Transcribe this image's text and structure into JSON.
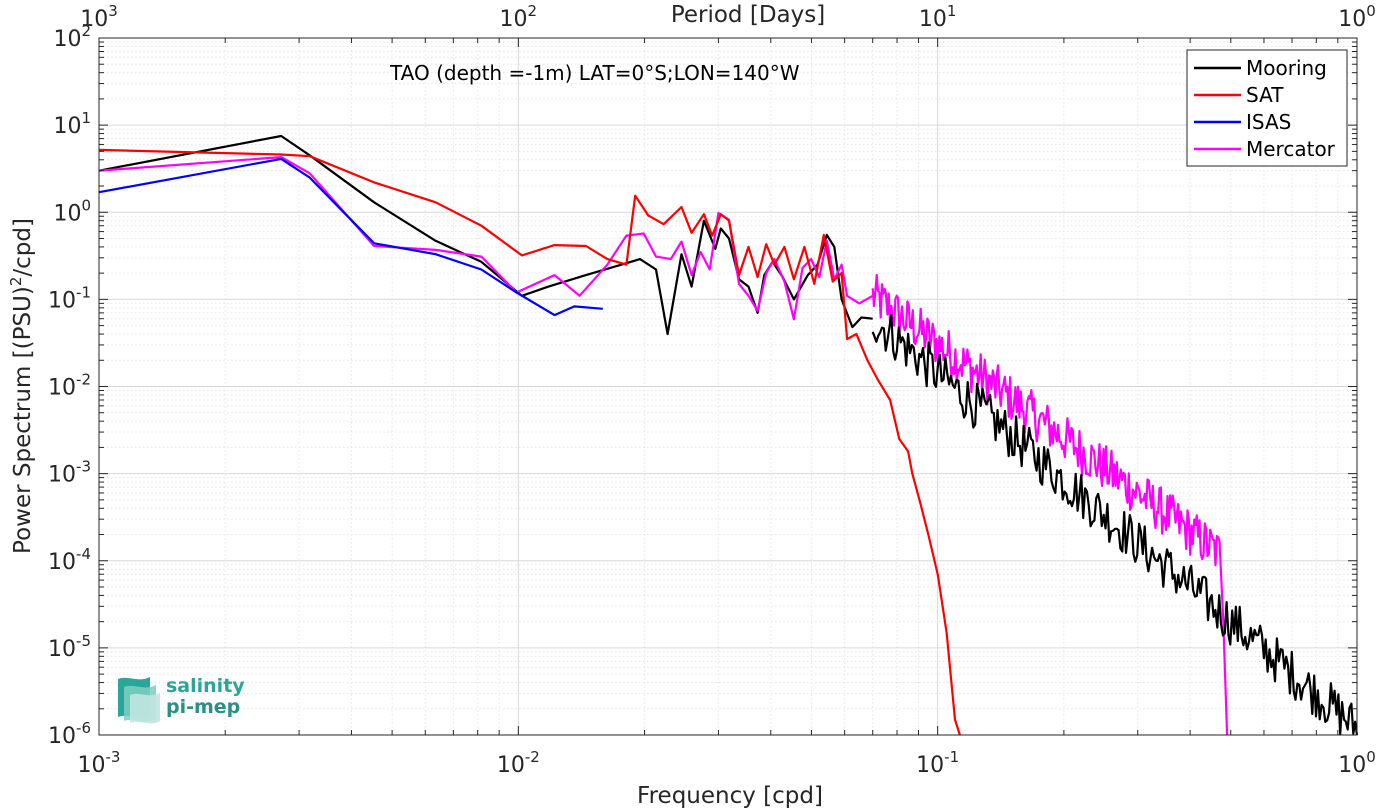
{
  "chart_data": {
    "type": "line",
    "title": "TAO (depth =-1m) LAT=0°S;LON=140°W",
    "xlabel": "Frequency [cpd]",
    "ylabel": "Power Spectrum [(PSU)²/cpd]",
    "ylabel_parts": {
      "before": "Power Spectrum [(PSU)",
      "sup": "2",
      "after": "/cpd]"
    },
    "top_xlabel": "Period [Days]",
    "xscale": "log",
    "yscale": "log",
    "xlim": [
      0.001,
      1
    ],
    "ylim": [
      1e-06,
      100
    ],
    "grid": true,
    "legend_position": "top-right",
    "x_ticks": [
      {
        "base": "10",
        "exp": "-3"
      },
      {
        "base": "10",
        "exp": "-2"
      },
      {
        "base": "10",
        "exp": "-1"
      },
      {
        "base": "10",
        "exp": "0"
      }
    ],
    "top_x_ticks": [
      {
        "base": "10",
        "exp": "3"
      },
      {
        "base": "10",
        "exp": "2"
      },
      {
        "base": "10",
        "exp": "1"
      },
      {
        "base": "10",
        "exp": "0"
      }
    ],
    "y_ticks": [
      {
        "base": "10",
        "exp": "-6"
      },
      {
        "base": "10",
        "exp": "-5"
      },
      {
        "base": "10",
        "exp": "-4"
      },
      {
        "base": "10",
        "exp": "-3"
      },
      {
        "base": "10",
        "exp": "-2"
      },
      {
        "base": "10",
        "exp": "-1"
      },
      {
        "base": "10",
        "exp": "0"
      },
      {
        "base": "10",
        "exp": "1"
      },
      {
        "base": "10",
        "exp": "2"
      }
    ],
    "series": [
      {
        "name": "Mooring",
        "color": "#000000",
        "generated": false,
        "x": [
          0.001,
          0.00272,
          0.00318,
          0.00453,
          0.00635,
          0.00816,
          0.0102,
          0.0118,
          0.0145,
          0.0181,
          0.0195,
          0.0213,
          0.0227,
          0.0245,
          0.0259,
          0.0277,
          0.0295,
          0.0304,
          0.0318,
          0.0336,
          0.0354,
          0.0372,
          0.0386,
          0.0404,
          0.0427,
          0.0454,
          0.049,
          0.0517,
          0.0544,
          0.0567,
          0.059,
          0.0626,
          0.0658,
          0.07
        ],
        "y": [
          3.0,
          7.5,
          4.5,
          1.3,
          0.47,
          0.27,
          0.11,
          0.14,
          0.19,
          0.26,
          0.29,
          0.22,
          0.04,
          0.33,
          0.14,
          0.8,
          0.38,
          0.65,
          0.5,
          0.17,
          0.14,
          0.07,
          0.19,
          0.27,
          0.18,
          0.1,
          0.19,
          0.25,
          0.55,
          0.4,
          0.1,
          0.048,
          0.062,
          0.06
        ]
      },
      {
        "name": "SAT",
        "color": "#ff0000",
        "generated": false,
        "x": [
          0.001,
          0.00272,
          0.00318,
          0.00453,
          0.00635,
          0.00816,
          0.0102,
          0.0122,
          0.0145,
          0.0163,
          0.0181,
          0.019,
          0.0204,
          0.0222,
          0.0245,
          0.0259,
          0.0277,
          0.029,
          0.0304,
          0.0318,
          0.0336,
          0.0354,
          0.0372,
          0.039,
          0.0408,
          0.0431,
          0.0454,
          0.0481,
          0.0508,
          0.0535,
          0.0562,
          0.059,
          0.0608,
          0.064,
          0.068,
          0.072,
          0.077,
          0.081,
          0.085,
          0.087,
          0.091,
          0.095,
          0.1,
          0.105,
          0.11,
          0.113
        ],
        "y": [
          5.2,
          4.6,
          4.4,
          2.2,
          1.3,
          0.7,
          0.32,
          0.42,
          0.41,
          0.29,
          0.25,
          1.55,
          0.92,
          0.73,
          1.15,
          0.58,
          0.95,
          0.54,
          0.95,
          0.8,
          0.19,
          0.4,
          0.18,
          0.43,
          0.25,
          0.4,
          0.17,
          0.4,
          0.15,
          0.55,
          0.16,
          0.2,
          0.035,
          0.04,
          0.02,
          0.012,
          0.007,
          0.0025,
          0.0018,
          0.001,
          0.00045,
          0.0002,
          7e-05,
          1.5e-05,
          1.5e-06,
          1e-06
        ]
      },
      {
        "name": "ISAS",
        "color": "#0000ff",
        "generated": false,
        "x": [
          0.001,
          0.00272,
          0.00318,
          0.00453,
          0.00635,
          0.00816,
          0.0099,
          0.0122,
          0.0136,
          0.0159
        ],
        "y": [
          1.7,
          4.1,
          2.5,
          0.44,
          0.33,
          0.22,
          0.12,
          0.066,
          0.083,
          0.078
        ]
      },
      {
        "name": "Mercator",
        "color": "#ff00ff",
        "generated": false,
        "x": [
          0.001,
          0.00272,
          0.00318,
          0.00453,
          0.00635,
          0.00816,
          0.0099,
          0.0122,
          0.014,
          0.0163,
          0.0181,
          0.0199,
          0.0213,
          0.0231,
          0.0245,
          0.0259,
          0.0272,
          0.0286,
          0.03,
          0.0318,
          0.0336,
          0.0354,
          0.0372,
          0.039,
          0.0408,
          0.0431,
          0.0454,
          0.0476,
          0.0499,
          0.0522,
          0.0544,
          0.0567,
          0.059,
          0.0608,
          0.065,
          0.07
        ],
        "y": [
          3.0,
          4.3,
          2.8,
          0.41,
          0.37,
          0.31,
          0.12,
          0.19,
          0.11,
          0.25,
          0.54,
          0.57,
          0.31,
          0.29,
          0.46,
          0.19,
          0.35,
          0.22,
          0.98,
          0.82,
          0.15,
          0.11,
          0.074,
          0.2,
          0.29,
          0.16,
          0.059,
          0.23,
          0.29,
          0.18,
          0.47,
          0.17,
          0.25,
          0.11,
          0.09,
          0.11
        ]
      },
      {
        "name": "",
        "color": "#ff00ff",
        "generated": true,
        "note_hidden": true,
        "start": 0.07,
        "end": 0.47,
        "start_y": 0.11,
        "end_y": 0.00012
      },
      {
        "name": "",
        "color": "#000000",
        "generated": true,
        "note_hidden": true,
        "start": 0.07,
        "end": 1.0,
        "start_y": 0.06,
        "end_y": 1.2e-06
      }
    ],
    "logo": {
      "line1": "salinity",
      "line2": "pi-mep"
    }
  }
}
